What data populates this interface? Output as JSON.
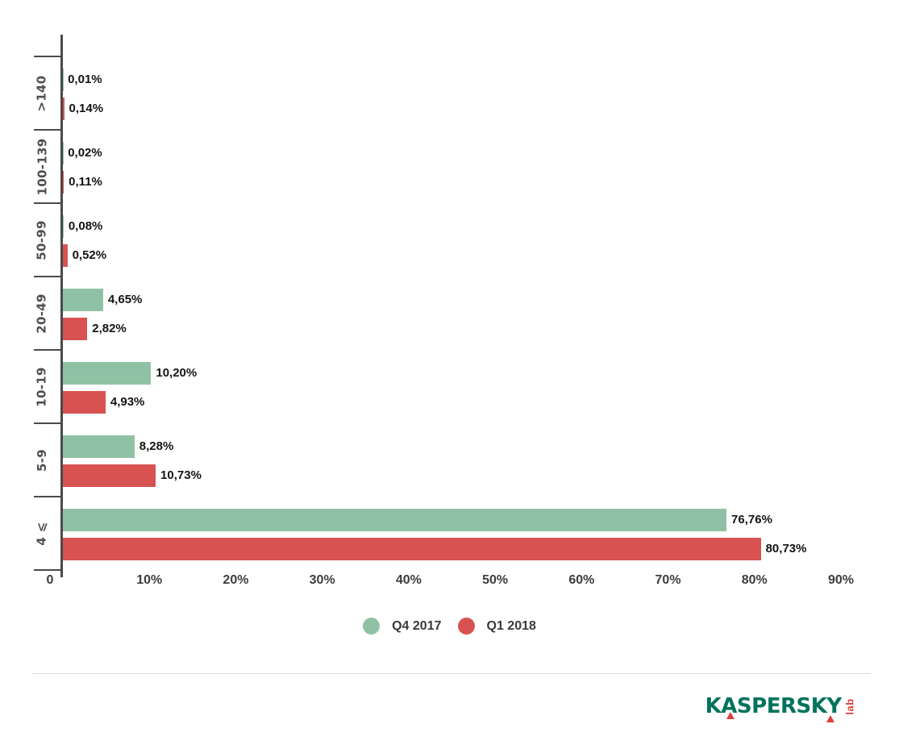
{
  "page": {
    "background": "#ffffff"
  },
  "chart_data": {
    "type": "bar",
    "orientation": "horizontal",
    "title": "",
    "categories": [
      ">140",
      "100-139",
      "50-99",
      "20-49",
      "10-19",
      "5-9",
      "4 ⩽"
    ],
    "series": [
      {
        "name": "Q4 2017",
        "color": "#8fc2a4",
        "values": [
          0.01,
          0.02,
          0.08,
          4.65,
          10.2,
          8.28,
          76.76
        ],
        "value_labels": [
          "0,01%",
          "0,02%",
          "0,08%",
          "4,65%",
          "10,20%",
          "8,28%",
          "76,76%"
        ]
      },
      {
        "name": "Q1 2018",
        "color": "#d85252",
        "values": [
          0.14,
          0.11,
          0.52,
          2.82,
          4.93,
          10.73,
          80.73
        ],
        "value_labels": [
          "0,14%",
          "0,11%",
          "0,52%",
          "2,82%",
          "4,93%",
          "10,73%",
          "80,73%"
        ]
      }
    ],
    "x_ticks": [
      "0",
      "10%",
      "20%",
      "30%",
      "40%",
      "50%",
      "60%",
      "70%",
      "80%",
      "90%"
    ],
    "xlim": [
      0,
      90
    ],
    "grid": false,
    "legend_position": "bottom-center",
    "axis_color": "#4a4a4a"
  },
  "legend": {
    "items": [
      {
        "label": "Q4 2017",
        "color": "#8fc2a4"
      },
      {
        "label": "Q1 2018",
        "color": "#d85252"
      }
    ]
  },
  "branding": {
    "logo_text": "KASPERSKY",
    "logo_sub": "lab",
    "logo_green": "#00735c",
    "logo_red": "#db4040"
  }
}
